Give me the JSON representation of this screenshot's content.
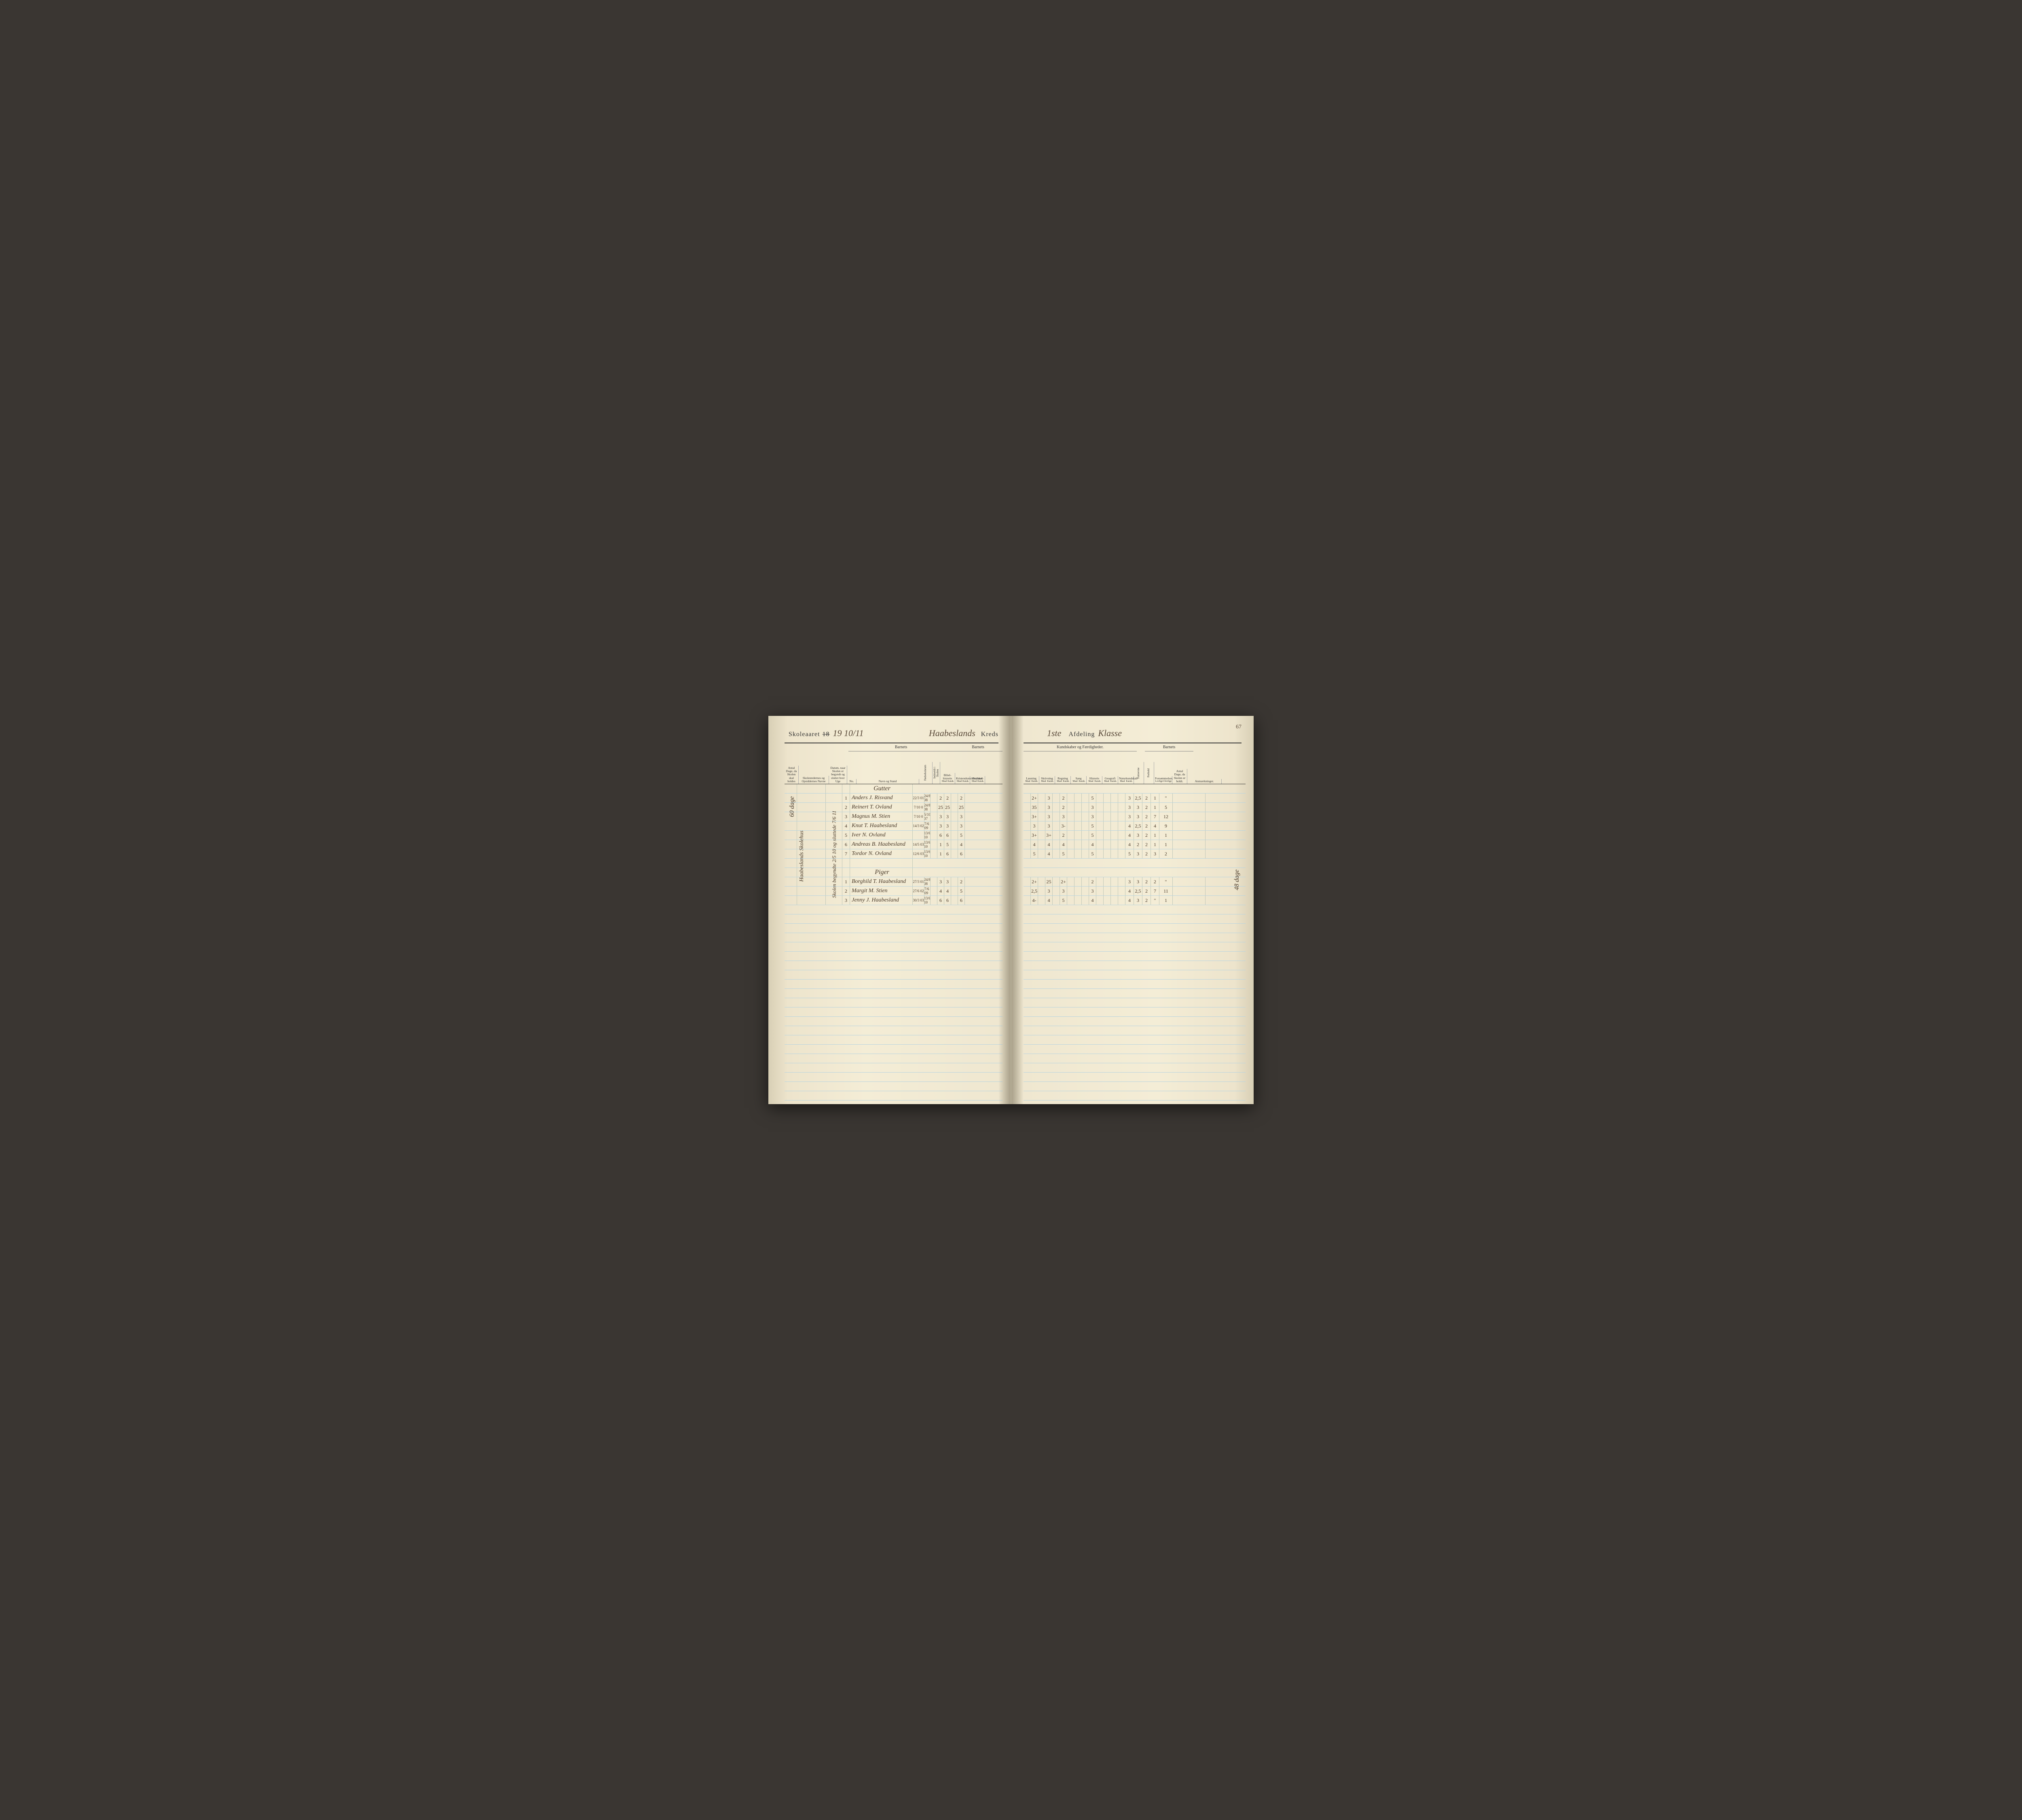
{
  "page_number": "67",
  "header": {
    "skoleaaret_label": "Skoleaaret",
    "year_struck": "18",
    "year_written": "19 10/11",
    "kreds_name": "Haabeslands",
    "kreds_label": "Kreds",
    "afdeling_num": "1ste",
    "afdeling_label": "Afdeling",
    "klasse": "Klasse"
  },
  "left_column_headers": {
    "group_barnets": "Barnets",
    "antal_dage": "Antal Dage, da Skolen skal holdes",
    "skolesteder": "Skolestedernes og Opsiddernes Navne",
    "datum": "Datum, naar Skolen er begyndt og sluttet hver Uge",
    "no": "No.",
    "navn": "Navn og Stand",
    "fodselsdatum": "Fødselsdatum",
    "indmeldt": "Indmeldt i Skolen",
    "bibel": "Bibel-historie",
    "kristendom": "Kristendomskundskab",
    "psalmer": "Psalmer",
    "maal": "Maal",
    "karak": "Karak."
  },
  "right_column_headers": {
    "group_kundskaber": "Kundskaber og Færdigheder.",
    "group_barnets": "Barnets",
    "laesning": "Læsning",
    "skrivning": "Skrivning",
    "regning": "Regning",
    "sang": "Sang",
    "historie": "Historie",
    "geografi": "Geografi",
    "naturkundskab": "Naturkundskab",
    "fatteevne": "Fatteevne",
    "forhold": "Forhold",
    "forsommelser": "Forsømmelser.",
    "lovlige": "Lovlige",
    "ulovlige": "Ulovlige",
    "antal_dage": "Antal Dage, da Skolen er holdt.",
    "anmaerkninger": "Anmærkninger.",
    "maal": "Maal",
    "karak": "Karak."
  },
  "sideways": {
    "note1": "60 dage",
    "note2": "Haabeslands Skolehus",
    "note3": "Skolen begyndte 2/5 10 og sluttede 7/6 11",
    "note_right": "48 dage"
  },
  "sections": {
    "gutter": "Gutter",
    "piger": "Piger"
  },
  "rows_boys": [
    {
      "no": "1",
      "name": "Anders J. Risvand",
      "dob": "22/3 01",
      "enr": "24/8 08",
      "b1": "",
      "b2": "2",
      "b3": "",
      "k1": "2",
      "k2": "",
      "p": "2",
      "la": "2+",
      "sk": "3",
      "re": "2",
      "sa": "",
      "hi": "5",
      "ge": "",
      "na": "",
      "fa": "3",
      "fo": "2,5",
      "f1": "2",
      "f2": "1",
      "ad": "\""
    },
    {
      "no": "2",
      "name": "Reinert T. Ovland",
      "dob": "7/10 0",
      "enr": "24/8 08",
      "b1": "",
      "b2": "25",
      "b3": "",
      "k1": "25",
      "k2": "",
      "p": "25",
      "la": "35",
      "sk": "3",
      "re": "2",
      "sa": "",
      "hi": "3",
      "ge": "",
      "na": "",
      "fa": "3",
      "fo": "3",
      "f1": "2",
      "f2": "1",
      "ad": "5"
    },
    {
      "no": "3",
      "name": "Magnus M. Stien",
      "dob": "7/10 0",
      "enr": "5/10 07",
      "b1": "",
      "b2": "3",
      "b3": "",
      "k1": "3",
      "k2": "",
      "p": "3",
      "la": "3+",
      "sk": "3",
      "re": "3",
      "sa": "",
      "hi": "3",
      "ge": "",
      "na": "",
      "fa": "3",
      "fo": "3",
      "f1": "2",
      "f2": "7",
      "ad": "12"
    },
    {
      "no": "4",
      "name": "Knut T. Haabesland",
      "dob": "14/3 02",
      "enr": "7/6 09",
      "b1": "",
      "b2": "3",
      "b3": "",
      "k1": "3",
      "k2": "",
      "p": "3",
      "la": "3",
      "sk": "3",
      "re": "3-",
      "sa": "",
      "hi": "5",
      "ge": "",
      "na": "",
      "fa": "4",
      "fo": "2,5",
      "f1": "2",
      "f2": "4",
      "ad": "9"
    },
    {
      "no": "5",
      "name": "Iver N. Ovland",
      "dob": "",
      "enr": "13/6 10",
      "b1": "",
      "b2": "6",
      "b3": "",
      "k1": "6",
      "k2": "",
      "p": "5",
      "la": "3+",
      "sk": "3+",
      "re": "2",
      "sa": "",
      "hi": "5",
      "ge": "",
      "na": "",
      "fa": "4",
      "fo": "3",
      "f1": "2",
      "f2": "1",
      "ad": "1"
    },
    {
      "no": "6",
      "name": "Andreas B. Haabesland",
      "dob": "14/5 03",
      "enr": "13/6 10",
      "b1": "",
      "b2": "1",
      "b3": "",
      "k1": "5",
      "k2": "",
      "p": "4",
      "la": "4",
      "sk": "4",
      "re": "4",
      "sa": "",
      "hi": "4",
      "ge": "",
      "na": "",
      "fa": "4",
      "fo": "2",
      "f1": "2",
      "f2": "1",
      "ad": "1"
    },
    {
      "no": "7",
      "name": "Tordor N. Ovland",
      "dob": "12/6 03",
      "enr": "13/6 10",
      "b1": "",
      "b2": "1",
      "b3": "",
      "k1": "6",
      "k2": "",
      "p": "6",
      "la": "5",
      "sk": "4",
      "re": "5",
      "sa": "",
      "hi": "5",
      "ge": "",
      "na": "",
      "fa": "5",
      "fo": "3",
      "f1": "2",
      "f2": "3",
      "ad": "2"
    }
  ],
  "rows_girls": [
    {
      "no": "1",
      "name": "Borghild T. Haabesland",
      "dob": "27/3 01",
      "enr": "24/8 08",
      "b1": "",
      "b2": "3",
      "b3": "",
      "k1": "3",
      "k2": "",
      "p": "2",
      "la": "2+",
      "sk": "25",
      "re": "2+",
      "sa": "",
      "hi": "2",
      "ge": "",
      "na": "",
      "fa": "3",
      "fo": "3",
      "f1": "2",
      "f2": "2",
      "ad": "\""
    },
    {
      "no": "2",
      "name": "Margit M. Stien",
      "dob": "27/6 02",
      "enr": "7/6 09",
      "b1": "",
      "b2": "4",
      "b3": "",
      "k1": "4",
      "k2": "",
      "p": "5",
      "la": "2,5",
      "sk": "3",
      "re": "3",
      "sa": "",
      "hi": "3",
      "ge": "",
      "na": "",
      "fa": "4",
      "fo": "2,5",
      "f1": "2",
      "f2": "7",
      "ad": "11"
    },
    {
      "no": "3",
      "name": "Jenny J. Haabesland",
      "dob": "30/3 03",
      "enr": "13/6 10",
      "b1": "",
      "b2": "6",
      "b3": "",
      "k1": "6",
      "k2": "",
      "p": "6",
      "la": "4-",
      "sk": "4",
      "re": "5",
      "sa": "",
      "hi": "4",
      "ge": "",
      "na": "",
      "fa": "4",
      "fo": "3",
      "f1": "2",
      "f2": "\"",
      "ad": "1"
    }
  ],
  "colors": {
    "ink": "#4a3a2a",
    "ruling": "#333333",
    "blue_line": "#a8c4d0",
    "paper": "#f4edd6"
  }
}
